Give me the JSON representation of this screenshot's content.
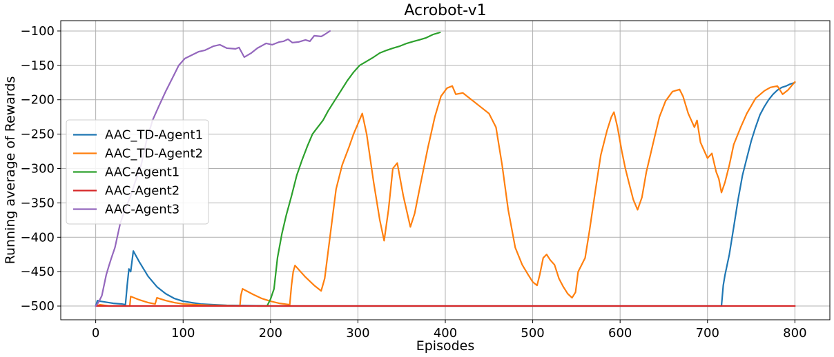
{
  "chart_data": {
    "type": "line",
    "title": "Acrobot-v1",
    "xlabel": "Episodes",
    "ylabel": "Running average of Rewards",
    "xlim": [
      -40,
      840
    ],
    "ylim": [
      -520,
      -85
    ],
    "xticks": [
      0,
      100,
      200,
      300,
      400,
      500,
      600,
      700,
      800
    ],
    "yticks": [
      -500,
      -450,
      -400,
      -350,
      -300,
      -250,
      -200,
      -150,
      -100
    ],
    "grid": true,
    "legend_position": "center-left",
    "series": [
      {
        "name": "AAC_TD-Agent1",
        "color": "#1f77b4",
        "points": [
          [
            0,
            -500
          ],
          [
            2,
            -492
          ],
          [
            5,
            -493
          ],
          [
            10,
            -494
          ],
          [
            20,
            -496
          ],
          [
            30,
            -497
          ],
          [
            34,
            -498
          ],
          [
            36,
            -470
          ],
          [
            38,
            -446
          ],
          [
            40,
            -450
          ],
          [
            43,
            -420
          ],
          [
            50,
            -436
          ],
          [
            60,
            -457
          ],
          [
            70,
            -472
          ],
          [
            80,
            -482
          ],
          [
            90,
            -489
          ],
          [
            100,
            -493
          ],
          [
            120,
            -497
          ],
          [
            150,
            -499
          ],
          [
            200,
            -500
          ],
          [
            400,
            -500
          ],
          [
            716,
            -500
          ],
          [
            718,
            -470
          ],
          [
            720,
            -455
          ],
          [
            725,
            -425
          ],
          [
            730,
            -385
          ],
          [
            735,
            -345
          ],
          [
            740,
            -310
          ],
          [
            745,
            -285
          ],
          [
            750,
            -260
          ],
          [
            755,
            -240
          ],
          [
            760,
            -222
          ],
          [
            765,
            -210
          ],
          [
            770,
            -200
          ],
          [
            775,
            -192
          ],
          [
            780,
            -186
          ],
          [
            785,
            -182
          ],
          [
            790,
            -180
          ],
          [
            795,
            -177
          ],
          [
            800,
            -175
          ]
        ]
      },
      {
        "name": "AAC_TD-Agent2",
        "color": "#ff7f0e",
        "points": [
          [
            0,
            -500
          ],
          [
            5,
            -498
          ],
          [
            15,
            -500
          ],
          [
            39,
            -500
          ],
          [
            40,
            -486
          ],
          [
            50,
            -491
          ],
          [
            60,
            -495
          ],
          [
            68,
            -497
          ],
          [
            70,
            -488
          ],
          [
            80,
            -492
          ],
          [
            90,
            -495
          ],
          [
            100,
            -497
          ],
          [
            130,
            -499
          ],
          [
            165,
            -500
          ],
          [
            166,
            -485
          ],
          [
            168,
            -475
          ],
          [
            180,
            -483
          ],
          [
            190,
            -489
          ],
          [
            200,
            -493
          ],
          [
            210,
            -496
          ],
          [
            222,
            -498
          ],
          [
            224,
            -470
          ],
          [
            226,
            -450
          ],
          [
            228,
            -441
          ],
          [
            240,
            -458
          ],
          [
            250,
            -470
          ],
          [
            258,
            -478
          ],
          [
            262,
            -460
          ],
          [
            268,
            -400
          ],
          [
            275,
            -330
          ],
          [
            282,
            -295
          ],
          [
            290,
            -268
          ],
          [
            295,
            -250
          ],
          [
            300,
            -235
          ],
          [
            305,
            -220
          ],
          [
            310,
            -250
          ],
          [
            318,
            -320
          ],
          [
            325,
            -375
          ],
          [
            330,
            -405
          ],
          [
            335,
            -360
          ],
          [
            340,
            -300
          ],
          [
            345,
            -292
          ],
          [
            352,
            -340
          ],
          [
            360,
            -385
          ],
          [
            365,
            -365
          ],
          [
            372,
            -320
          ],
          [
            380,
            -270
          ],
          [
            388,
            -225
          ],
          [
            395,
            -195
          ],
          [
            402,
            -183
          ],
          [
            408,
            -180
          ],
          [
            412,
            -192
          ],
          [
            420,
            -190
          ],
          [
            430,
            -200
          ],
          [
            440,
            -210
          ],
          [
            450,
            -220
          ],
          [
            458,
            -240
          ],
          [
            465,
            -295
          ],
          [
            472,
            -360
          ],
          [
            480,
            -415
          ],
          [
            488,
            -440
          ],
          [
            495,
            -455
          ],
          [
            500,
            -465
          ],
          [
            505,
            -470
          ],
          [
            508,
            -455
          ],
          [
            512,
            -430
          ],
          [
            516,
            -425
          ],
          [
            520,
            -433
          ],
          [
            525,
            -440
          ],
          [
            530,
            -460
          ],
          [
            535,
            -472
          ],
          [
            540,
            -482
          ],
          [
            545,
            -488
          ],
          [
            549,
            -480
          ],
          [
            552,
            -450
          ],
          [
            556,
            -440
          ],
          [
            560,
            -430
          ],
          [
            565,
            -390
          ],
          [
            572,
            -330
          ],
          [
            578,
            -280
          ],
          [
            585,
            -245
          ],
          [
            590,
            -225
          ],
          [
            593,
            -218
          ],
          [
            597,
            -240
          ],
          [
            602,
            -275
          ],
          [
            606,
            -300
          ],
          [
            610,
            -320
          ],
          [
            615,
            -345
          ],
          [
            620,
            -360
          ],
          [
            625,
            -342
          ],
          [
            630,
            -305
          ],
          [
            638,
            -262
          ],
          [
            645,
            -225
          ],
          [
            652,
            -202
          ],
          [
            660,
            -188
          ],
          [
            668,
            -185
          ],
          [
            672,
            -195
          ],
          [
            678,
            -220
          ],
          [
            685,
            -240
          ],
          [
            688,
            -230
          ],
          [
            692,
            -262
          ],
          [
            700,
            -285
          ],
          [
            705,
            -278
          ],
          [
            710,
            -305
          ],
          [
            713,
            -315
          ],
          [
            716,
            -335
          ],
          [
            720,
            -320
          ],
          [
            725,
            -295
          ],
          [
            730,
            -265
          ],
          [
            738,
            -240
          ],
          [
            745,
            -220
          ],
          [
            755,
            -198
          ],
          [
            765,
            -187
          ],
          [
            772,
            -182
          ],
          [
            780,
            -180
          ],
          [
            786,
            -192
          ],
          [
            792,
            -186
          ],
          [
            800,
            -174
          ]
        ]
      },
      {
        "name": "AAC-Agent1",
        "color": "#2ca02c",
        "points": [
          [
            185,
            -500
          ],
          [
            196,
            -500
          ],
          [
            200,
            -490
          ],
          [
            204,
            -475
          ],
          [
            208,
            -430
          ],
          [
            213,
            -395
          ],
          [
            218,
            -368
          ],
          [
            224,
            -340
          ],
          [
            230,
            -310
          ],
          [
            236,
            -288
          ],
          [
            242,
            -268
          ],
          [
            248,
            -250
          ],
          [
            254,
            -240
          ],
          [
            260,
            -230
          ],
          [
            266,
            -216
          ],
          [
            272,
            -204
          ],
          [
            280,
            -188
          ],
          [
            288,
            -172
          ],
          [
            295,
            -160
          ],
          [
            302,
            -150
          ],
          [
            310,
            -144
          ],
          [
            318,
            -138
          ],
          [
            325,
            -132
          ],
          [
            333,
            -128
          ],
          [
            340,
            -125
          ],
          [
            348,
            -122
          ],
          [
            356,
            -118
          ],
          [
            364,
            -115
          ],
          [
            370,
            -113
          ],
          [
            378,
            -110
          ],
          [
            386,
            -105
          ],
          [
            394,
            -102
          ]
        ]
      },
      {
        "name": "AAC-Agent2",
        "color": "#d62728",
        "points": [
          [
            0,
            -500
          ],
          [
            800,
            -500
          ]
        ]
      },
      {
        "name": "AAC-Agent3",
        "color": "#9467bd",
        "points": [
          [
            0,
            -500
          ],
          [
            3,
            -495
          ],
          [
            7,
            -485
          ],
          [
            12,
            -455
          ],
          [
            15,
            -442
          ],
          [
            18,
            -430
          ],
          [
            22,
            -415
          ],
          [
            28,
            -380
          ],
          [
            34,
            -358
          ],
          [
            40,
            -340
          ],
          [
            45,
            -320
          ],
          [
            52,
            -295
          ],
          [
            58,
            -260
          ],
          [
            65,
            -230
          ],
          [
            72,
            -210
          ],
          [
            80,
            -188
          ],
          [
            88,
            -168
          ],
          [
            95,
            -150
          ],
          [
            102,
            -140
          ],
          [
            110,
            -135
          ],
          [
            118,
            -130
          ],
          [
            125,
            -128
          ],
          [
            135,
            -122
          ],
          [
            142,
            -120
          ],
          [
            150,
            -125
          ],
          [
            160,
            -126
          ],
          [
            164,
            -124
          ],
          [
            170,
            -138
          ],
          [
            178,
            -132
          ],
          [
            185,
            -125
          ],
          [
            195,
            -118
          ],
          [
            202,
            -120
          ],
          [
            210,
            -116
          ],
          [
            215,
            -115
          ],
          [
            220,
            -112
          ],
          [
            225,
            -117
          ],
          [
            232,
            -116
          ],
          [
            240,
            -113
          ],
          [
            245,
            -115
          ],
          [
            250,
            -107
          ],
          [
            258,
            -108
          ],
          [
            262,
            -105
          ],
          [
            268,
            -100
          ]
        ]
      }
    ]
  }
}
